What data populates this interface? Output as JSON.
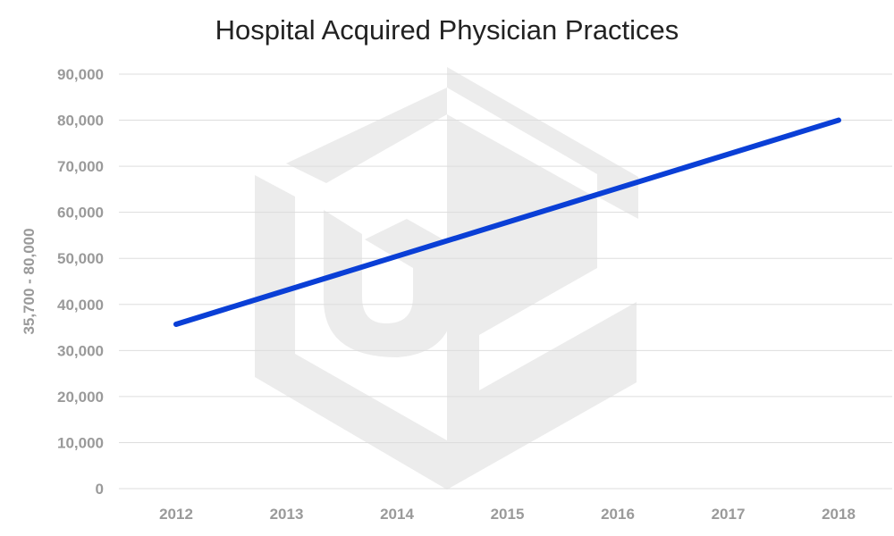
{
  "chart_data": {
    "type": "line",
    "title": "Hospital Acquired Physician Practices",
    "xlabel": "",
    "ylabel": "35,700 - 80,000",
    "categories": [
      "2012",
      "2013",
      "2014",
      "2015",
      "2016",
      "2017",
      "2018"
    ],
    "series": [
      {
        "values": [
          35700,
          43083,
          50467,
          57850,
          65233,
          72617,
          80000
        ]
      }
    ],
    "ylim": [
      0,
      90000
    ],
    "yticks": [
      "0",
      "10,000",
      "20,000",
      "30,000",
      "40,000",
      "50,000",
      "60,000",
      "70,000",
      "80,000",
      "90,000"
    ],
    "ytick_values": [
      0,
      10000,
      20000,
      30000,
      40000,
      50000,
      60000,
      70000,
      80000,
      90000
    ],
    "grid": true,
    "line_color": "#0a3fd6"
  }
}
